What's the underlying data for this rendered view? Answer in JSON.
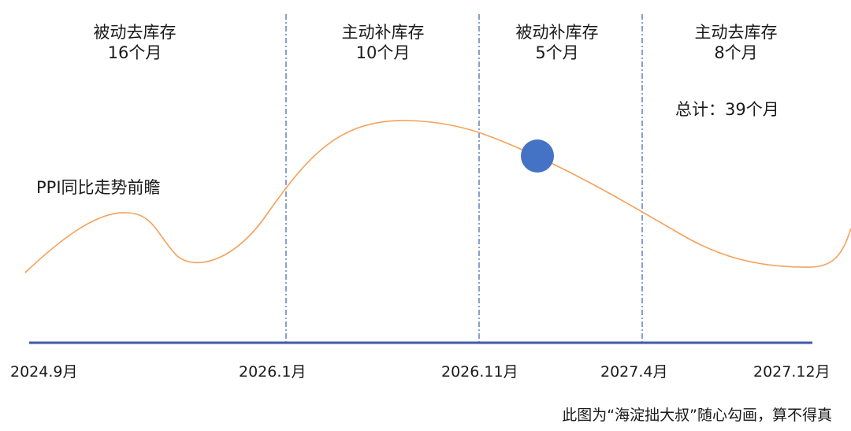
{
  "phases": [
    {
      "name": "被动去库存",
      "duration": "16个月"
    },
    {
      "name": "主动补库存",
      "duration": "10个月"
    },
    {
      "name": "被动补库存",
      "duration": "5个月"
    },
    {
      "name": "主动去库存",
      "duration": "8个月"
    }
  ],
  "total": "总计：39个月",
  "series_label": "PPI同比走势前瞻",
  "x_ticks": [
    "2024.9月",
    "2026.1月",
    "2026.11月",
    "2027.4月",
    "2027.12月"
  ],
  "caption": "此图为“海淀拙大叔”随心勾画，算不得真",
  "colors": {
    "curve": "#F5A05A",
    "axis": "#3F5BA9",
    "divider": "#4A6BB5",
    "marker": "#4472C4"
  }
}
